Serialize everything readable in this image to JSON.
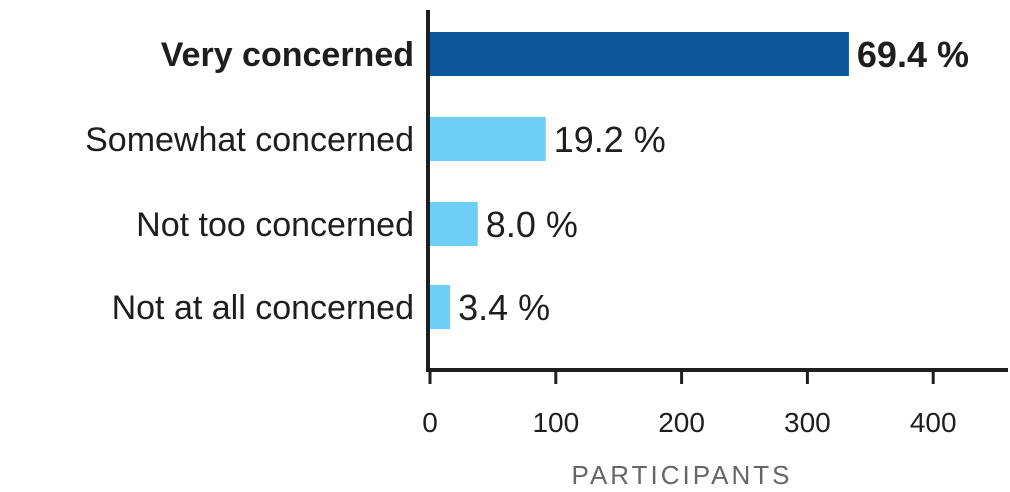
{
  "chart_data": {
    "type": "bar",
    "orientation": "horizontal",
    "categories": [
      "Very concerned",
      "Somewhat concerned",
      "Not too concerned",
      "Not at all concerned"
    ],
    "values": [
      333,
      92,
      38,
      16
    ],
    "data_labels": [
      "69.4 %",
      "19.2 %",
      "8.0 %",
      "3.4 %"
    ],
    "highlight_index": 0,
    "xlabel": "PARTICIPANTS",
    "ylabel": "",
    "xlim": [
      0,
      460
    ],
    "xticks": [
      0,
      100,
      200,
      300,
      400
    ],
    "xtick_labels": [
      "0",
      "100",
      "200",
      "300",
      "400"
    ],
    "grid": false,
    "legend": "none",
    "colors": {
      "highlight_bar": "#0b5797",
      "bar": "#6dcff5",
      "axis": "#1e1e1e",
      "text": "#1e1e1e",
      "axis_title": "#666666"
    }
  }
}
